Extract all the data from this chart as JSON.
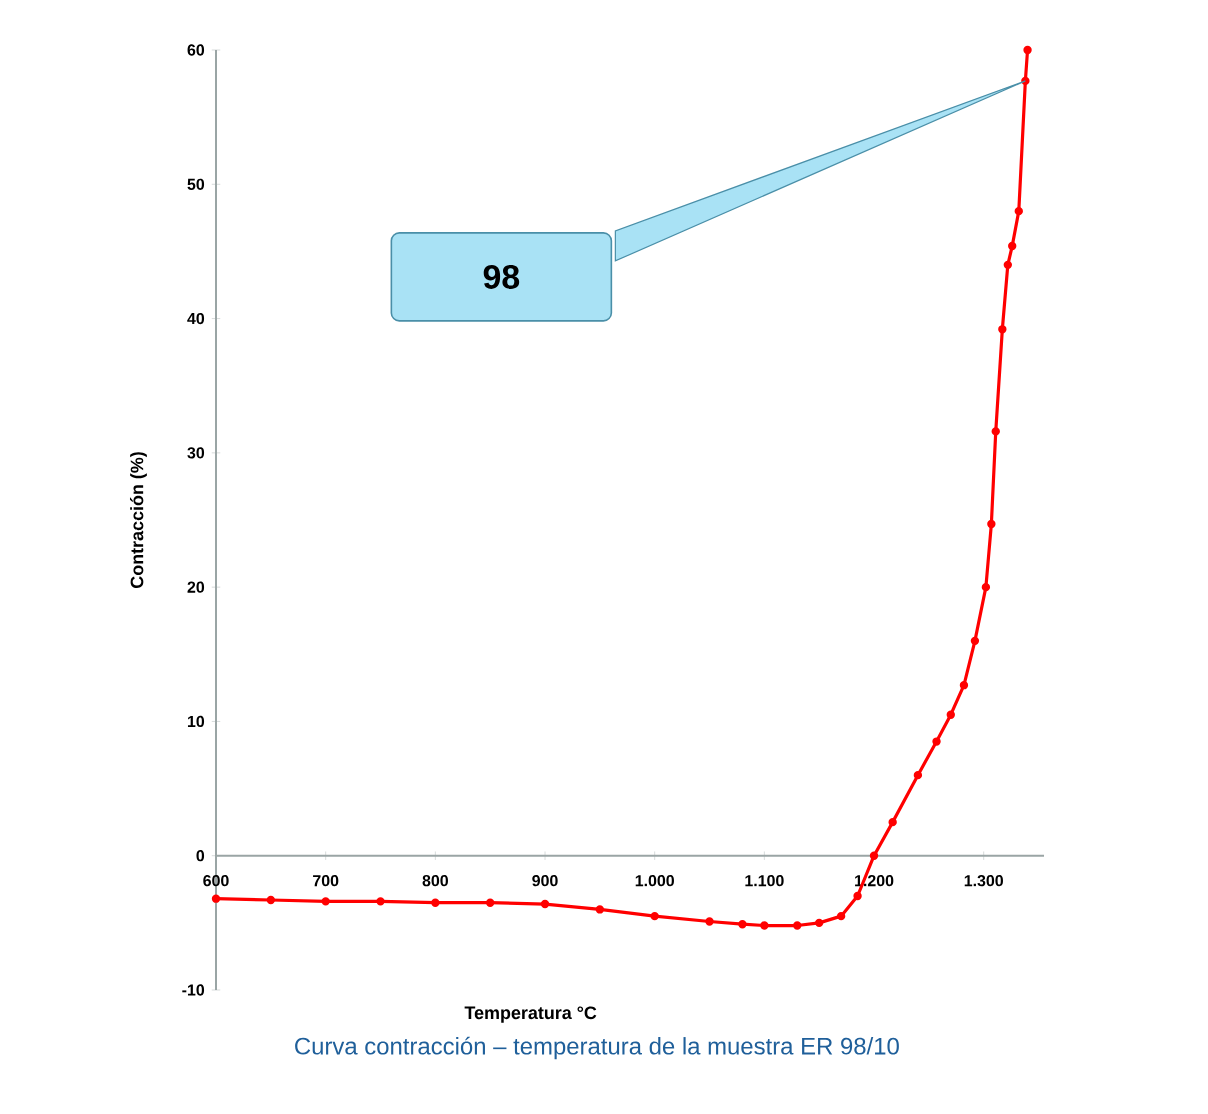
{
  "chart_data": {
    "type": "line",
    "title": "Curva contracción – temperatura de la muestra ER 98/10",
    "xlabel": "Temperatura °C",
    "ylabel": "Contracción (%)",
    "x": [
      600,
      650,
      700,
      750,
      800,
      850,
      900,
      950,
      1000,
      1050,
      1080,
      1100,
      1130,
      1150,
      1170,
      1185,
      1200,
      1217,
      1240,
      1257,
      1270,
      1282,
      1292,
      1302,
      1307,
      1311,
      1317,
      1322,
      1326,
      1332,
      1338,
      1340
    ],
    "series": [
      {
        "color": "#ff0000",
        "values": [
          -3.2,
          -3.3,
          -3.4,
          -3.4,
          -3.5,
          -3.5,
          -3.6,
          -4,
          -4.5,
          -4.9,
          -5.1,
          -5.2,
          -5.2,
          -5,
          -4.5,
          -3,
          0,
          2.5,
          6,
          8.5,
          10.5,
          12.7,
          16,
          20,
          24.7,
          31.6,
          39.2,
          44,
          45.4,
          48,
          57.7,
          60
        ]
      }
    ],
    "xlim": [
      600,
      1355
    ],
    "xticks": [
      600,
      700,
      800,
      900,
      {
        "value": 1000,
        "label": "1.000"
      },
      {
        "value": 1100,
        "label": "1.100"
      },
      {
        "value": 1200,
        "label": "1.200"
      },
      {
        "value": 1300,
        "label": "1.300"
      }
    ],
    "ylim": [
      -10,
      60
    ],
    "yticks": [
      -10,
      0,
      10,
      20,
      30,
      40,
      50,
      60
    ],
    "marker": "circle",
    "line_style": "solid",
    "grid": false,
    "legend": false,
    "annotations": [
      "98"
    ]
  }
}
